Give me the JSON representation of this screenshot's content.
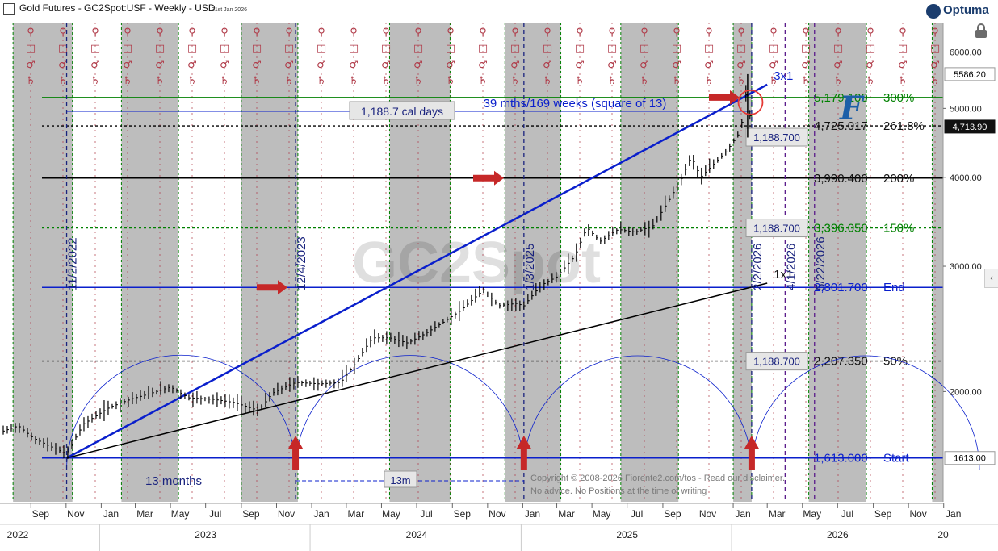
{
  "header": {
    "title": "Gold Futures - GC2Spot:USF - Weekly - USD",
    "date": "31st Jan 2026",
    "logo": "Optuma"
  },
  "watermark": "GC2Spot",
  "colors": {
    "up_bars": "#000000",
    "shade": "#bdbdbd",
    "green": "#008000",
    "blue": "#0a1fcc",
    "navy": "#1a237e",
    "red_arrow": "#c62828",
    "maroon": "#b03a48",
    "circle": "#e53935"
  },
  "chart_data": {
    "type": "bar",
    "scale": "log",
    "ylim": [
      1400,
      6600
    ],
    "x_range": [
      "2022-07-15",
      "2026-12-31"
    ],
    "y_ticks": [
      "6000.00",
      "5000.00",
      "4000.00",
      "3000.00",
      "2000.00"
    ],
    "y_tick_values": [
      6000,
      5000,
      4000,
      3000,
      2000
    ],
    "month_ticks": [
      {
        "label": "Sep",
        "date": "2022-09-01"
      },
      {
        "label": "Nov",
        "date": "2022-11-01"
      },
      {
        "label": "Jan",
        "date": "2023-01-01"
      },
      {
        "label": "Mar",
        "date": "2023-03-01"
      },
      {
        "label": "May",
        "date": "2023-05-01"
      },
      {
        "label": "Jul",
        "date": "2023-07-01"
      },
      {
        "label": "Sep",
        "date": "2023-09-01"
      },
      {
        "label": "Nov",
        "date": "2023-11-01"
      },
      {
        "label": "Jan",
        "date": "2024-01-01"
      },
      {
        "label": "Mar",
        "date": "2024-03-01"
      },
      {
        "label": "May",
        "date": "2024-05-01"
      },
      {
        "label": "Jul",
        "date": "2024-07-01"
      },
      {
        "label": "Sep",
        "date": "2024-09-01"
      },
      {
        "label": "Nov",
        "date": "2024-11-01"
      },
      {
        "label": "Jan",
        "date": "2025-01-01"
      },
      {
        "label": "Mar",
        "date": "2025-03-01"
      },
      {
        "label": "May",
        "date": "2025-05-01"
      },
      {
        "label": "Jul",
        "date": "2025-07-01"
      },
      {
        "label": "Sep",
        "date": "2025-09-01"
      },
      {
        "label": "Nov",
        "date": "2025-11-01"
      },
      {
        "label": "Jan",
        "date": "2026-01-01"
      },
      {
        "label": "Mar",
        "date": "2026-03-01"
      },
      {
        "label": "May",
        "date": "2026-05-01"
      },
      {
        "label": "Jul",
        "date": "2026-07-01"
      },
      {
        "label": "Sep",
        "date": "2026-09-01"
      },
      {
        "label": "Nov",
        "date": "2026-11-01"
      },
      {
        "label": "Jan",
        "date": "2027-01-01"
      }
    ],
    "year_ticks": [
      {
        "label": "2022",
        "date": "2022-07-15"
      },
      {
        "label": "2023",
        "date": "2023-07-01"
      },
      {
        "label": "2024",
        "date": "2024-07-01"
      },
      {
        "label": "2025",
        "date": "2025-07-01"
      },
      {
        "label": "2026",
        "date": "2026-07-01"
      },
      {
        "label": "20",
        "date": "2026-12-31"
      }
    ],
    "price_path": [
      [
        "2022-07-15",
        1760
      ],
      [
        "2022-08-10",
        1790
      ],
      [
        "2022-09-05",
        1720
      ],
      [
        "2022-10-01",
        1680
      ],
      [
        "2022-11-02",
        1635
      ],
      [
        "2022-12-01",
        1800
      ],
      [
        "2023-01-15",
        1900
      ],
      [
        "2023-02-20",
        1950
      ],
      [
        "2023-03-25",
        1985
      ],
      [
        "2023-05-01",
        2030
      ],
      [
        "2023-06-01",
        1960
      ],
      [
        "2023-07-15",
        1950
      ],
      [
        "2023-08-20",
        1930
      ],
      [
        "2023-10-01",
        1880
      ],
      [
        "2023-10-25",
        1990
      ],
      [
        "2023-12-04",
        2060
      ],
      [
        "2024-01-15",
        2050
      ],
      [
        "2024-02-20",
        2060
      ],
      [
        "2024-03-15",
        2180
      ],
      [
        "2024-04-15",
        2380
      ],
      [
        "2024-05-15",
        2380
      ],
      [
        "2024-06-15",
        2340
      ],
      [
        "2024-07-15",
        2410
      ],
      [
        "2024-08-15",
        2500
      ],
      [
        "2024-09-15",
        2600
      ],
      [
        "2024-10-25",
        2780
      ],
      [
        "2024-11-20",
        2640
      ],
      [
        "2024-12-20",
        2660
      ],
      [
        "2025-01-03",
        2640
      ],
      [
        "2025-02-01",
        2820
      ],
      [
        "2025-03-01",
        2900
      ],
      [
        "2025-04-01",
        3100
      ],
      [
        "2025-04-22",
        3400
      ],
      [
        "2025-05-15",
        3250
      ],
      [
        "2025-06-15",
        3380
      ],
      [
        "2025-07-15",
        3350
      ],
      [
        "2025-08-15",
        3420
      ],
      [
        "2025-09-10",
        3700
      ],
      [
        "2025-10-01",
        3950
      ],
      [
        "2025-10-20",
        4280
      ],
      [
        "2025-11-05",
        4000
      ],
      [
        "2025-11-25",
        4150
      ],
      [
        "2025-12-20",
        4350
      ],
      [
        "2026-01-10",
        4600
      ],
      [
        "2026-01-20",
        4900
      ],
      [
        "2026-01-26",
        5550
      ],
      [
        "2026-01-31",
        4714
      ]
    ],
    "horizontal_levels": [
      {
        "value": 5179.1,
        "value_label": "5,179.100",
        "pct_label": "300%",
        "color": "#008000",
        "style": "solid"
      },
      {
        "value": 4725.017,
        "value_label": "4,725.017",
        "pct_label": "261.8%",
        "color": "#000000",
        "style": "dotted"
      },
      {
        "value": 3990.4,
        "value_label": "3,990.400",
        "pct_label": "200%",
        "color": "#000000",
        "style": "solid"
      },
      {
        "value": 3396.05,
        "value_label": "3,396.050",
        "pct_label": "150%",
        "color": "#008000",
        "style": "dotted"
      },
      {
        "value": 2801.7,
        "value_label": "2,801.700",
        "pct_label": "End",
        "color": "#0a1fcc",
        "style": "solid"
      },
      {
        "value": 2207.35,
        "value_label": "2,207.350",
        "pct_label": "50%",
        "color": "#000000",
        "style": "dotted"
      },
      {
        "value": 1613.0,
        "value_label": "1,613.000",
        "pct_label": "Start",
        "color": "#0a1fcc",
        "style": "solid"
      }
    ],
    "price_tags": [
      {
        "label": "5586.20",
        "value": 5586.2,
        "dark": false
      },
      {
        "label": "4,713.90",
        "value": 4714,
        "dark": true
      },
      {
        "label": "1613.00",
        "value": 1613,
        "dark": false
      }
    ],
    "date_markers": [
      {
        "label": "11/2/2022",
        "date": "2022-11-02"
      },
      {
        "label": "12/4/2023",
        "date": "2023-12-04"
      },
      {
        "label": "1/3/2025",
        "date": "2025-01-03"
      },
      {
        "label": "2/2/2026",
        "date": "2026-02-02"
      },
      {
        "label": "4/1/2026",
        "date": "2026-04-01"
      },
      {
        "label": "5/22/2026",
        "date": "2026-05-22"
      }
    ],
    "shaded_bands": [
      [
        "2022-08-01",
        "2022-11-12"
      ],
      [
        "2023-02-05",
        "2023-05-15"
      ],
      [
        "2023-09-01",
        "2023-12-08"
      ],
      [
        "2024-05-15",
        "2024-08-28"
      ],
      [
        "2024-12-01",
        "2025-03-08"
      ],
      [
        "2025-06-20",
        "2025-09-28"
      ],
      [
        "2026-01-01",
        "2026-02-02"
      ],
      [
        "2026-05-12",
        "2026-08-20"
      ],
      [
        "2026-12-12",
        "2026-12-31"
      ]
    ],
    "trend_lines": [
      {
        "name": "3x1",
        "from": [
          "2022-11-02",
          1613
        ],
        "to": [
          "2026-02-02",
          5179.1
        ],
        "extend_to": [
          "2026-03-01",
          5400
        ],
        "color": "#0a1fcc"
      },
      {
        "name": "1x1",
        "from": [
          "2022-11-02",
          1613
        ],
        "to": [
          "2026-02-02",
          2801.7
        ],
        "extend_to": [
          "2026-03-01",
          2840
        ],
        "color": "#000000"
      }
    ],
    "annotations": {
      "span_label": "1,188.7 cal days",
      "span_note": "39 mths/169 weeks (square of 13)",
      "box_labels": [
        "1,188.700",
        "1,188.700",
        "1,188.700"
      ],
      "months_label": "13 months",
      "thirteen_label": "13m",
      "copyright": "Copyright © 2008-2026 Fiorente2.com/tos - Read our disclaimer.",
      "no_advice": "No advice. No Positions at the time of writing"
    }
  }
}
